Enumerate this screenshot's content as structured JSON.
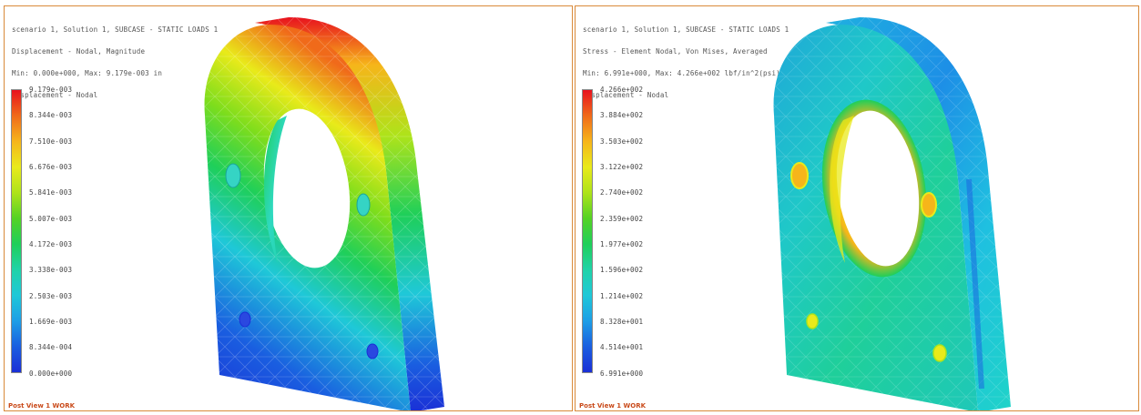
{
  "left_view": {
    "header_lines": [
      "scenario 1, Solution 1, SUBCASE - STATIC LOADS 1",
      "Displacement - Nodal, Magnitude",
      "Min: 0.000e+000, Max: 9.179e-003 in",
      "Displacement - Nodal"
    ],
    "legend_labels": [
      "9.179e-003",
      "8.344e-003",
      "7.510e-003",
      "6.676e-003",
      "5.841e-003",
      "5.007e-003",
      "4.172e-003",
      "3.338e-003",
      "2.503e-003",
      "1.669e-003",
      "8.344e-004",
      "0.000e+000"
    ],
    "footer": "Post View 1 WORK"
  },
  "right_view": {
    "header_lines": [
      "scenario 1, Solution 1, SUBCASE - STATIC LOADS 1",
      "Stress - Element Nodal, Von Mises, Averaged",
      "Min: 6.991e+000, Max: 4.266e+002 lbf/in^2(psi)",
      "Displacement - Nodal"
    ],
    "legend_labels": [
      "4.266e+002",
      "3.884e+002",
      "3.503e+002",
      "3.122e+002",
      "2.740e+002",
      "2.359e+002",
      "1.977e+002",
      "1.596e+002",
      "1.214e+002",
      "8.328e+001",
      "4.514e+001",
      "6.991e+000"
    ],
    "footer": "Post View 1 WORK"
  },
  "colors": {
    "legend_scale": [
      "#e8121e",
      "#f06a1a",
      "#f6b51a",
      "#e9ea1a",
      "#aee31a",
      "#55d224",
      "#1fcf5a",
      "#1fd3a8",
      "#1fc8d8",
      "#1d9ee6",
      "#1a5ee0",
      "#1a2fd6"
    ],
    "frame": "#d98a3a",
    "footer_text": "#c94a1a"
  }
}
